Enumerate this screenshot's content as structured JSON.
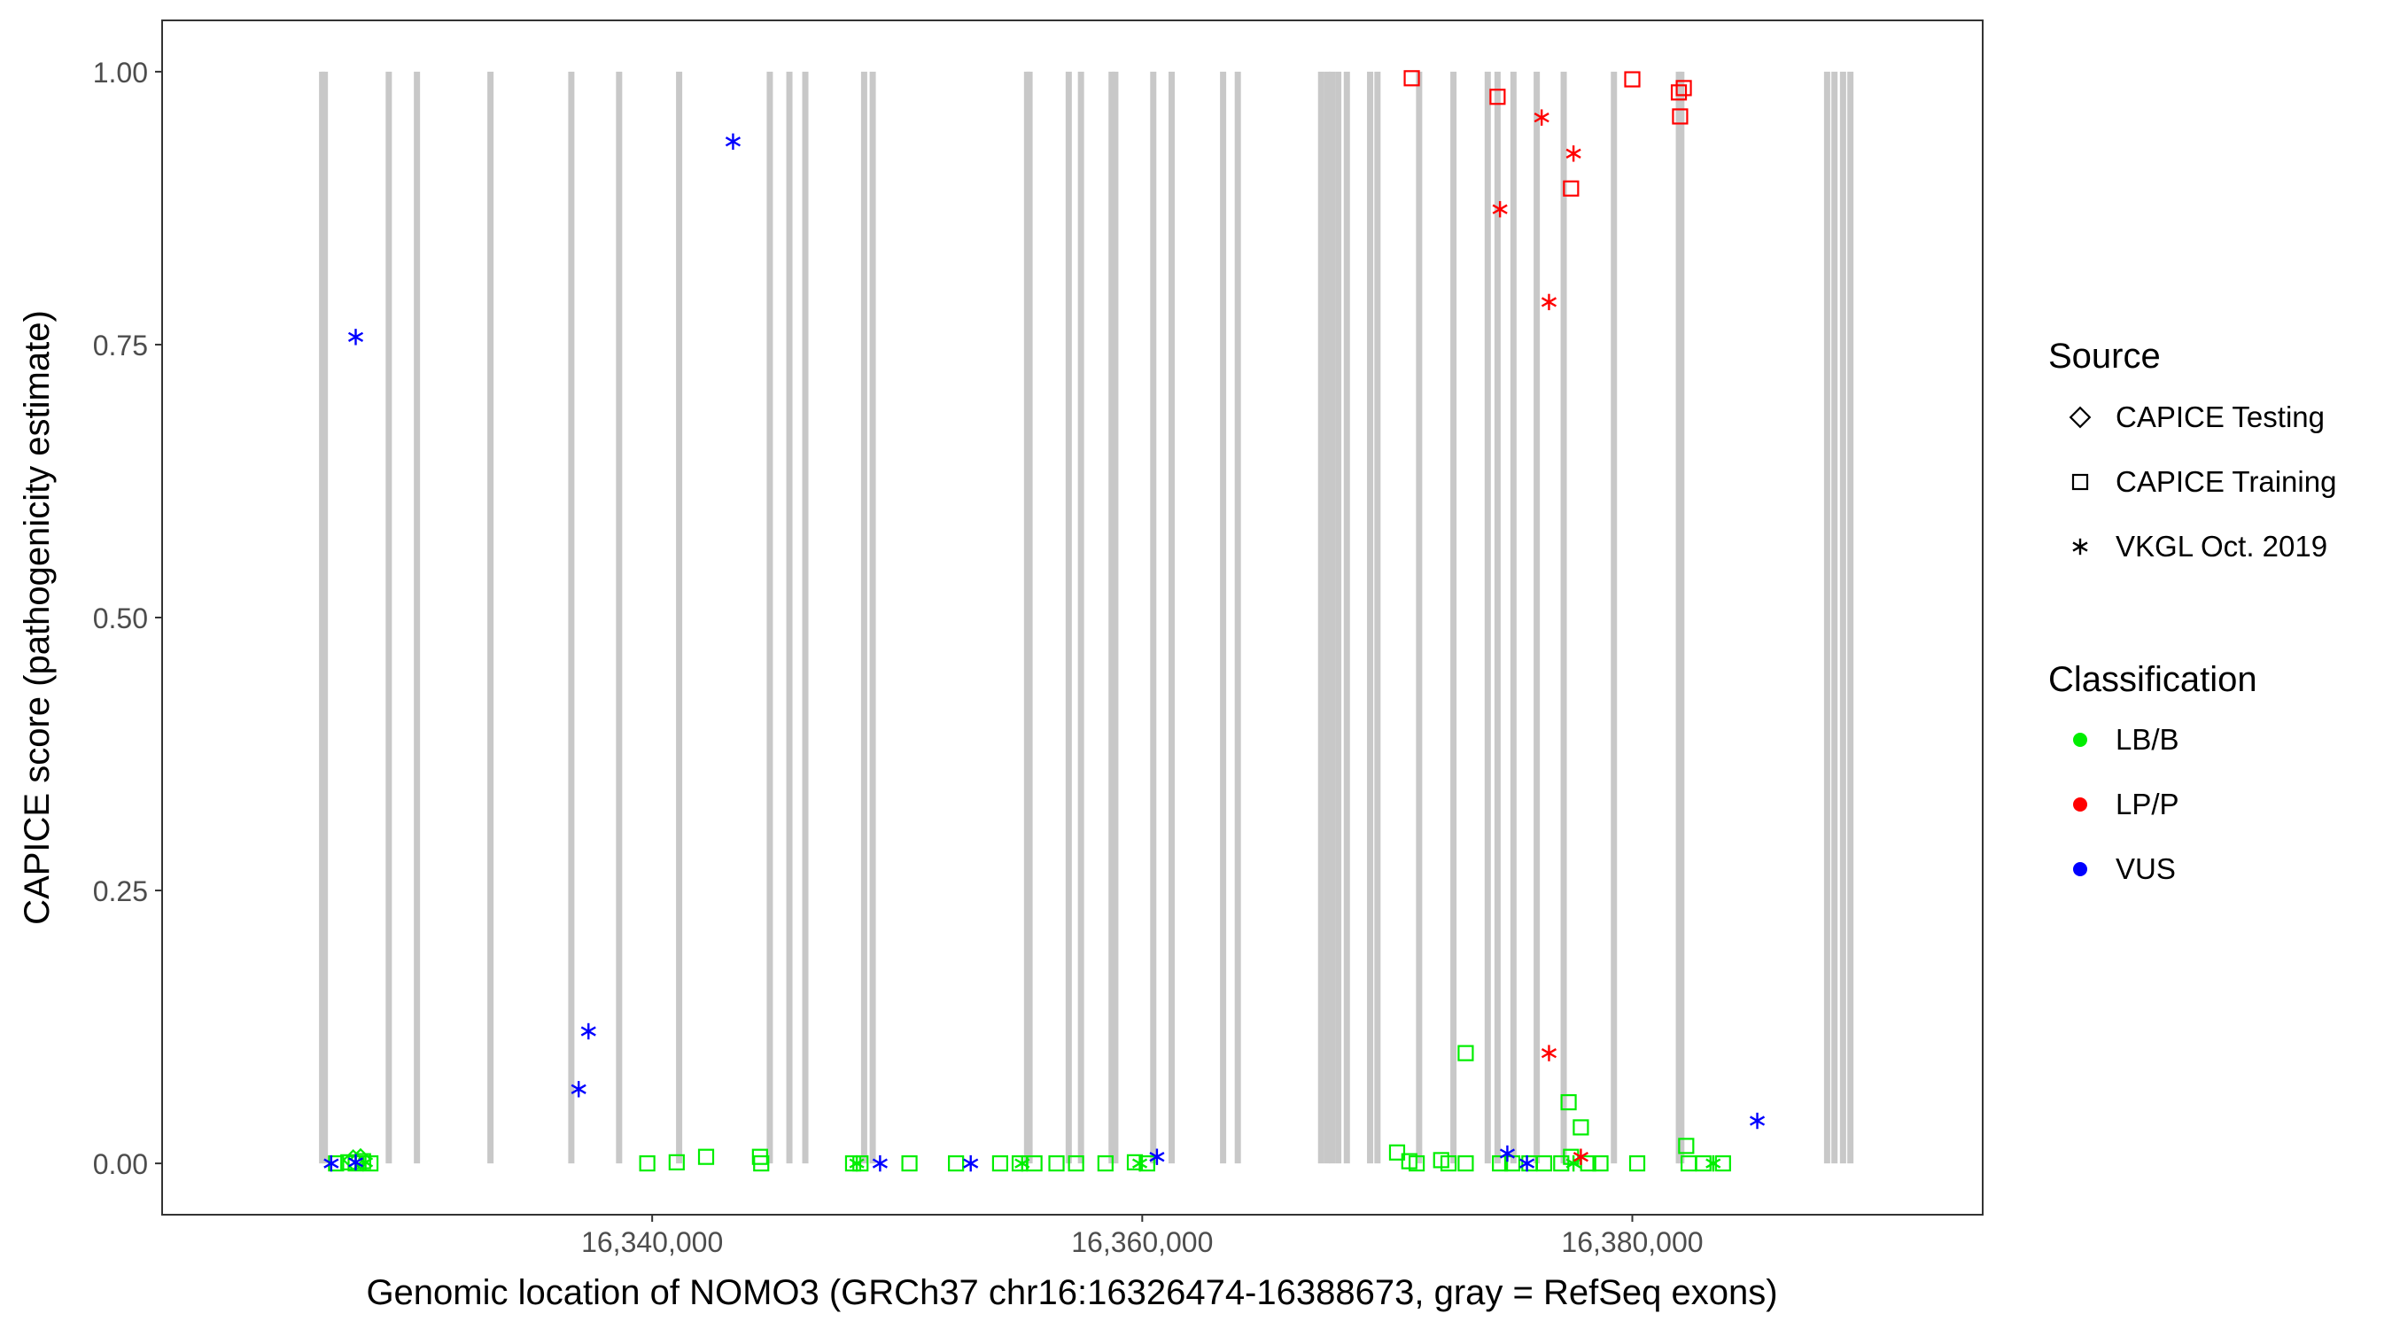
{
  "chart_data": {
    "type": "scatter",
    "title": "",
    "xlabel": "Genomic location of NOMO3 (GRCh37 chr16:16326474-16388673, gray = RefSeq exons)",
    "ylabel": "CAPICE score (pathogenicity estimate)",
    "xlim": [
      16320000,
      16394300
    ],
    "ylim": [
      -0.047,
      1.047
    ],
    "x_ticks": [
      16340000,
      16360000,
      16380000
    ],
    "x_tick_labels": [
      "16,340,000",
      "16,360,000",
      "16,380,000"
    ],
    "y_ticks": [
      0,
      0.25,
      0.5,
      0.75,
      1
    ],
    "y_tick_labels": [
      "0.00",
      "0.25",
      "0.50",
      "0.75",
      "1.00"
    ],
    "grid": false,
    "legend_position": "right",
    "exons": [
      16326530,
      16326640,
      16329250,
      16330400,
      16333400,
      16336700,
      16338650,
      16341100,
      16344800,
      16345600,
      16346250,
      16348650,
      16349000,
      16355300,
      16355400,
      16357000,
      16357500,
      16358750,
      16358900,
      16360450,
      16361200,
      16363300,
      16363900,
      16367300,
      16367550,
      16367750,
      16368000,
      16368350,
      16369300,
      16369600,
      16371300,
      16372700,
      16374100,
      16374500,
      16375150,
      16376100,
      16377200,
      16379250,
      16381900,
      16382000,
      16387950,
      16388250,
      16388600,
      16388900
    ],
    "legend": {
      "source_title": "Source",
      "sources": [
        {
          "label": "CAPICE Testing",
          "shape": "diamond"
        },
        {
          "label": "CAPICE Training",
          "shape": "square"
        },
        {
          "label": "VKGL Oct. 2019",
          "shape": "asterisk"
        }
      ],
      "classification_title": "Classification",
      "classes": [
        {
          "label": "LB/B",
          "color": "#00ee00"
        },
        {
          "label": "LP/P",
          "color": "#ff0000"
        },
        {
          "label": "VUS",
          "color": "#0000ff"
        }
      ]
    },
    "series": [
      {
        "name": "LB/B",
        "color": "#00ee00",
        "points": [
          {
            "x": 16327100,
            "y": 0.0,
            "shape": "square"
          },
          {
            "x": 16327600,
            "y": 0.001,
            "shape": "square"
          },
          {
            "x": 16327900,
            "y": 0.0,
            "shape": "square"
          },
          {
            "x": 16328200,
            "y": 0.002,
            "shape": "square"
          },
          {
            "x": 16327800,
            "y": 0.003,
            "shape": "diamond"
          },
          {
            "x": 16328100,
            "y": 0.004,
            "shape": "diamond"
          },
          {
            "x": 16328300,
            "y": 0.001,
            "shape": "asterisk"
          },
          {
            "x": 16328500,
            "y": 0.0,
            "shape": "square"
          },
          {
            "x": 16339800,
            "y": 0.0,
            "shape": "square"
          },
          {
            "x": 16341000,
            "y": 0.001,
            "shape": "square"
          },
          {
            "x": 16342200,
            "y": 0.006,
            "shape": "square"
          },
          {
            "x": 16344400,
            "y": 0.006,
            "shape": "square"
          },
          {
            "x": 16344450,
            "y": 0.0,
            "shape": "square"
          },
          {
            "x": 16348200,
            "y": 0.0,
            "shape": "square"
          },
          {
            "x": 16348350,
            "y": 0.0,
            "shape": "asterisk"
          },
          {
            "x": 16348500,
            "y": 0.0,
            "shape": "square"
          },
          {
            "x": 16350500,
            "y": 0.0,
            "shape": "square"
          },
          {
            "x": 16352400,
            "y": 0.0,
            "shape": "square"
          },
          {
            "x": 16354200,
            "y": 0.0,
            "shape": "square"
          },
          {
            "x": 16355000,
            "y": 0.0,
            "shape": "square"
          },
          {
            "x": 16355100,
            "y": 0.0,
            "shape": "asterisk"
          },
          {
            "x": 16355600,
            "y": 0.0,
            "shape": "square"
          },
          {
            "x": 16356500,
            "y": 0.0,
            "shape": "square"
          },
          {
            "x": 16357300,
            "y": 0.0,
            "shape": "square"
          },
          {
            "x": 16358500,
            "y": 0.0,
            "shape": "square"
          },
          {
            "x": 16359700,
            "y": 0.001,
            "shape": "square"
          },
          {
            "x": 16359900,
            "y": 0.0,
            "shape": "asterisk"
          },
          {
            "x": 16360200,
            "y": 0.0,
            "shape": "square"
          },
          {
            "x": 16370400,
            "y": 0.01,
            "shape": "square"
          },
          {
            "x": 16370900,
            "y": 0.002,
            "shape": "square"
          },
          {
            "x": 16371200,
            "y": 0.0,
            "shape": "square"
          },
          {
            "x": 16372200,
            "y": 0.003,
            "shape": "square"
          },
          {
            "x": 16372500,
            "y": 0.0,
            "shape": "square"
          },
          {
            "x": 16373200,
            "y": 0.101,
            "shape": "square"
          },
          {
            "x": 16373200,
            "y": 0.0,
            "shape": "square"
          },
          {
            "x": 16374600,
            "y": 0.0,
            "shape": "square"
          },
          {
            "x": 16375100,
            "y": 0.0,
            "shape": "square"
          },
          {
            "x": 16375800,
            "y": 0.0,
            "shape": "square"
          },
          {
            "x": 16376400,
            "y": 0.0,
            "shape": "square"
          },
          {
            "x": 16377100,
            "y": 0.0,
            "shape": "square"
          },
          {
            "x": 16377400,
            "y": 0.056,
            "shape": "square"
          },
          {
            "x": 16377500,
            "y": 0.006,
            "shape": "square"
          },
          {
            "x": 16377600,
            "y": 0.0,
            "shape": "asterisk"
          },
          {
            "x": 16377900,
            "y": 0.033,
            "shape": "square"
          },
          {
            "x": 16378200,
            "y": 0.0,
            "shape": "square"
          },
          {
            "x": 16378700,
            "y": 0.0,
            "shape": "square"
          },
          {
            "x": 16380200,
            "y": 0.0,
            "shape": "square"
          },
          {
            "x": 16382200,
            "y": 0.016,
            "shape": "square"
          },
          {
            "x": 16382300,
            "y": 0.0,
            "shape": "square"
          },
          {
            "x": 16382900,
            "y": 0.0,
            "shape": "square"
          },
          {
            "x": 16383300,
            "y": 0.0,
            "shape": "asterisk"
          },
          {
            "x": 16383700,
            "y": 0.0,
            "shape": "square"
          }
        ]
      },
      {
        "name": "LP/P",
        "color": "#ff0000",
        "points": [
          {
            "x": 16371000,
            "y": 0.994,
            "shape": "square"
          },
          {
            "x": 16374500,
            "y": 0.977,
            "shape": "square"
          },
          {
            "x": 16374600,
            "y": 0.874,
            "shape": "asterisk"
          },
          {
            "x": 16376300,
            "y": 0.958,
            "shape": "asterisk"
          },
          {
            "x": 16376600,
            "y": 0.789,
            "shape": "asterisk"
          },
          {
            "x": 16376600,
            "y": 0.101,
            "shape": "asterisk"
          },
          {
            "x": 16377500,
            "y": 0.893,
            "shape": "square"
          },
          {
            "x": 16377600,
            "y": 0.925,
            "shape": "asterisk"
          },
          {
            "x": 16377900,
            "y": 0.006,
            "shape": "asterisk"
          },
          {
            "x": 16380000,
            "y": 0.993,
            "shape": "square"
          },
          {
            "x": 16381900,
            "y": 0.981,
            "shape": "square"
          },
          {
            "x": 16382100,
            "y": 0.985,
            "shape": "square"
          },
          {
            "x": 16381950,
            "y": 0.959,
            "shape": "square"
          }
        ]
      },
      {
        "name": "VUS",
        "color": "#0000ff",
        "points": [
          {
            "x": 16326900,
            "y": 0.0,
            "shape": "asterisk"
          },
          {
            "x": 16327900,
            "y": 0.757,
            "shape": "asterisk"
          },
          {
            "x": 16327900,
            "y": 0.001,
            "shape": "asterisk"
          },
          {
            "x": 16337000,
            "y": 0.068,
            "shape": "asterisk"
          },
          {
            "x": 16337400,
            "y": 0.121,
            "shape": "asterisk"
          },
          {
            "x": 16343300,
            "y": 0.936,
            "shape": "asterisk"
          },
          {
            "x": 16349300,
            "y": 0.0,
            "shape": "asterisk"
          },
          {
            "x": 16353000,
            "y": 0.0,
            "shape": "asterisk"
          },
          {
            "x": 16360600,
            "y": 0.006,
            "shape": "asterisk"
          },
          {
            "x": 16374900,
            "y": 0.009,
            "shape": "asterisk"
          },
          {
            "x": 16375700,
            "y": 0.0,
            "shape": "asterisk"
          },
          {
            "x": 16385100,
            "y": 0.039,
            "shape": "asterisk"
          }
        ]
      }
    ]
  }
}
